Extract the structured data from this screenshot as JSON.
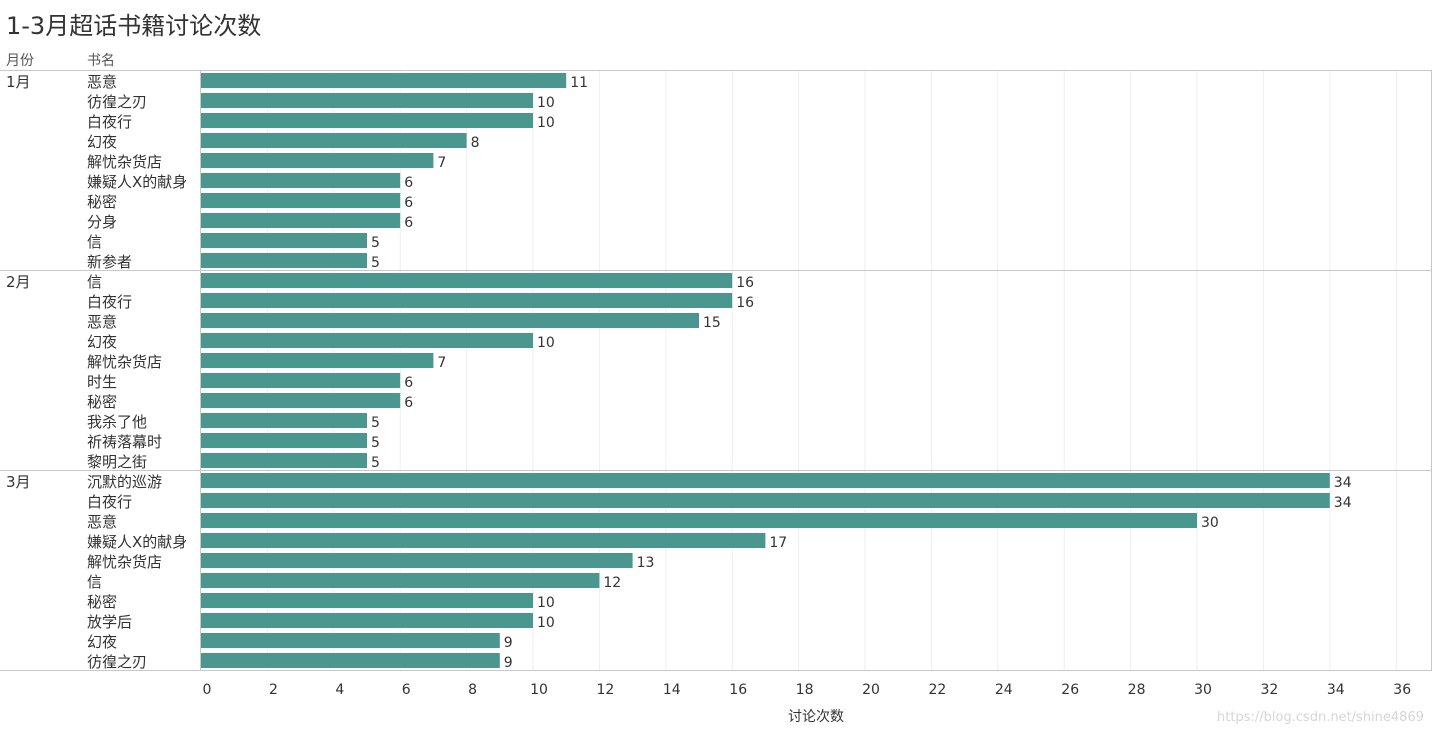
{
  "watermark": "https://blog.csdn.net/shine4869",
  "chart_data": {
    "type": "bar",
    "orientation": "horizontal",
    "title": "1-3月超话书籍讨论次数",
    "row_headers": [
      "月份",
      "书名"
    ],
    "xlabel": "讨论次数",
    "xlim": [
      0,
      36
    ],
    "xticks": [
      0,
      2,
      4,
      6,
      8,
      10,
      12,
      14,
      16,
      18,
      20,
      22,
      24,
      26,
      28,
      30,
      32,
      34,
      36
    ],
    "bar_color": "#4b9790",
    "grid": true,
    "groups": [
      {
        "month": "1月",
        "books": [
          "恶意",
          "彷徨之刃",
          "白夜行",
          "幻夜",
          "解忧杂货店",
          "嫌疑人X的献身",
          "秘密",
          "分身",
          "信",
          "新参者"
        ],
        "values": [
          11,
          10,
          10,
          8,
          7,
          6,
          6,
          6,
          5,
          5
        ]
      },
      {
        "month": "2月",
        "books": [
          "信",
          "白夜行",
          "恶意",
          "幻夜",
          "解忧杂货店",
          "时生",
          "秘密",
          "我杀了他",
          "祈祷落幕时",
          "黎明之街"
        ],
        "values": [
          16,
          16,
          15,
          10,
          7,
          6,
          6,
          5,
          5,
          5
        ]
      },
      {
        "month": "3月",
        "books": [
          "沉默的巡游",
          "白夜行",
          "恶意",
          "嫌疑人X的献身",
          "解忧杂货店",
          "信",
          "秘密",
          "放学后",
          "幻夜",
          "彷徨之刃"
        ],
        "values": [
          34,
          34,
          30,
          17,
          13,
          12,
          10,
          10,
          9,
          9
        ]
      }
    ]
  }
}
